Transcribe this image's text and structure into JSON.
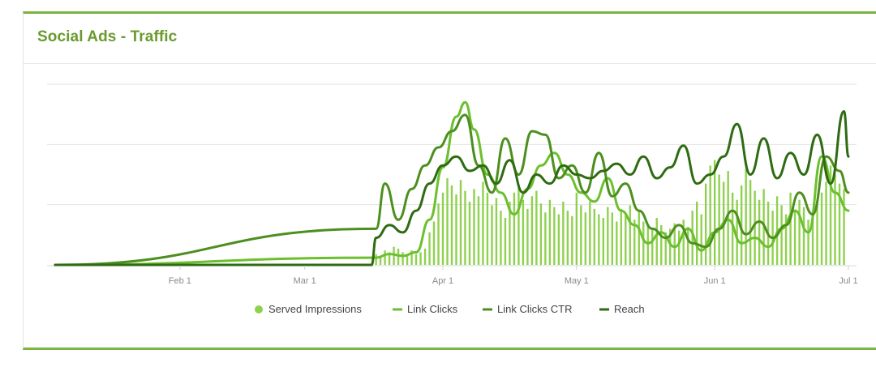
{
  "panel": {
    "title": "Social Ads - Traffic"
  },
  "colors": {
    "served_impressions": "#8fd14f",
    "link_clicks": "#6cbf2e",
    "link_clicks_ctr": "#4d8f1f",
    "reach": "#2f6b12",
    "gridline": "#e2e2e2",
    "title": "#6a9a2e"
  },
  "chart_data": {
    "type": "line",
    "grid": true,
    "legend_position": "bottom",
    "x_tick_labels": [
      "Feb 1",
      "Mar 1",
      "Apr 1",
      "May 1",
      "Jun 1",
      "Jul 1"
    ],
    "x_range": [
      "2021-01-04",
      "2021-07-01"
    ],
    "series": [
      {
        "name": "Served Impressions",
        "style": "bar",
        "color": "#8fd14f",
        "x": [
          "2021-03-17",
          "2021-03-18",
          "2021-03-19",
          "2021-03-20",
          "2021-03-21",
          "2021-03-22",
          "2021-03-23",
          "2021-03-24",
          "2021-03-25",
          "2021-03-26",
          "2021-03-27",
          "2021-03-28",
          "2021-03-29",
          "2021-03-30",
          "2021-03-31",
          "2021-04-01",
          "2021-04-02",
          "2021-04-03",
          "2021-04-04",
          "2021-04-05",
          "2021-04-06",
          "2021-04-07",
          "2021-04-08",
          "2021-04-09",
          "2021-04-10",
          "2021-04-11",
          "2021-04-12",
          "2021-04-13",
          "2021-04-14",
          "2021-04-15",
          "2021-04-16",
          "2021-04-17",
          "2021-04-18",
          "2021-04-19",
          "2021-04-20",
          "2021-04-21",
          "2021-04-22",
          "2021-04-23",
          "2021-04-24",
          "2021-04-25",
          "2021-04-26",
          "2021-04-27",
          "2021-04-28",
          "2021-04-29",
          "2021-04-30",
          "2021-05-01",
          "2021-05-02",
          "2021-05-03",
          "2021-05-04",
          "2021-05-05",
          "2021-05-06",
          "2021-05-07",
          "2021-05-08",
          "2021-05-09",
          "2021-05-10",
          "2021-05-11",
          "2021-05-12",
          "2021-05-13",
          "2021-05-14",
          "2021-05-15",
          "2021-05-16",
          "2021-05-17",
          "2021-05-18",
          "2021-05-19",
          "2021-05-20",
          "2021-05-21",
          "2021-05-22",
          "2021-05-23",
          "2021-05-24",
          "2021-05-25",
          "2021-05-26",
          "2021-05-27",
          "2021-05-28",
          "2021-05-29",
          "2021-05-30",
          "2021-05-31",
          "2021-06-01",
          "2021-06-02",
          "2021-06-03",
          "2021-06-04",
          "2021-06-05",
          "2021-06-06",
          "2021-06-07",
          "2021-06-08",
          "2021-06-09",
          "2021-06-10",
          "2021-06-11",
          "2021-06-12",
          "2021-06-13",
          "2021-06-14",
          "2021-06-15",
          "2021-06-16",
          "2021-06-17",
          "2021-06-18",
          "2021-06-19",
          "2021-06-20",
          "2021-06-21",
          "2021-06-22",
          "2021-06-23",
          "2021-06-24",
          "2021-06-25",
          "2021-06-26",
          "2021-06-27",
          "2021-06-28",
          "2021-06-29",
          "2021-06-30"
        ],
        "values": [
          0.06,
          0.05,
          0.08,
          0.07,
          0.1,
          0.09,
          0.07,
          0.05,
          0.08,
          0.06,
          0.07,
          0.09,
          0.18,
          0.24,
          0.34,
          0.4,
          0.48,
          0.44,
          0.39,
          0.47,
          0.41,
          0.35,
          0.42,
          0.38,
          0.46,
          0.4,
          0.33,
          0.37,
          0.3,
          0.26,
          0.35,
          0.4,
          0.43,
          0.36,
          0.31,
          0.38,
          0.41,
          0.34,
          0.29,
          0.36,
          0.32,
          0.28,
          0.35,
          0.3,
          0.27,
          0.4,
          0.33,
          0.29,
          0.35,
          0.31,
          0.28,
          0.26,
          0.32,
          0.29,
          0.24,
          0.31,
          0.28,
          0.33,
          0.25,
          0.3,
          0.24,
          0.22,
          0.2,
          0.26,
          0.22,
          0.18,
          0.2,
          0.23,
          0.19,
          0.25,
          0.21,
          0.3,
          0.35,
          0.28,
          0.45,
          0.55,
          0.58,
          0.5,
          0.46,
          0.52,
          0.4,
          0.36,
          0.44,
          0.53,
          0.47,
          0.41,
          0.36,
          0.42,
          0.35,
          0.3,
          0.38,
          0.33,
          0.28,
          0.4,
          0.3,
          0.36,
          0.32,
          0.25,
          0.3,
          0.35,
          0.4,
          0.46,
          0.55,
          0.5,
          0.45,
          0.42
        ]
      },
      {
        "name": "Link Clicks",
        "color": "#6cbf2e",
        "x": [
          "2021-01-04",
          "2021-03-17",
          "2021-03-20",
          "2021-03-23",
          "2021-03-26",
          "2021-03-29",
          "2021-04-01",
          "2021-04-04",
          "2021-04-06",
          "2021-04-08",
          "2021-04-11",
          "2021-04-14",
          "2021-04-17",
          "2021-04-20",
          "2021-04-23",
          "2021-04-26",
          "2021-04-29",
          "2021-05-02",
          "2021-05-05",
          "2021-05-08",
          "2021-05-11",
          "2021-05-14",
          "2021-05-17",
          "2021-05-20",
          "2021-05-23",
          "2021-05-26",
          "2021-05-29",
          "2021-06-01",
          "2021-06-04",
          "2021-06-07",
          "2021-06-10",
          "2021-06-13",
          "2021-06-16",
          "2021-06-19",
          "2021-06-22",
          "2021-06-25",
          "2021-06-28",
          "2021-07-01"
        ],
        "values": [
          0.0,
          0.04,
          0.06,
          0.05,
          0.07,
          0.25,
          0.54,
          0.82,
          0.9,
          0.75,
          0.5,
          0.4,
          0.28,
          0.42,
          0.55,
          0.62,
          0.5,
          0.4,
          0.35,
          0.48,
          0.3,
          0.22,
          0.12,
          0.18,
          0.1,
          0.2,
          0.08,
          0.18,
          0.25,
          0.12,
          0.15,
          0.1,
          0.2,
          0.3,
          0.18,
          0.6,
          0.4,
          0.3
        ]
      },
      {
        "name": "Link Clicks CTR",
        "color": "#4d8f1f",
        "x": [
          "2021-01-04",
          "2021-03-17",
          "2021-03-19",
          "2021-03-22",
          "2021-03-25",
          "2021-03-28",
          "2021-03-31",
          "2021-04-03",
          "2021-04-06",
          "2021-04-09",
          "2021-04-12",
          "2021-04-15",
          "2021-04-18",
          "2021-04-21",
          "2021-04-24",
          "2021-04-27",
          "2021-04-30",
          "2021-05-03",
          "2021-05-06",
          "2021-05-09",
          "2021-05-12",
          "2021-05-15",
          "2021-05-18",
          "2021-05-21",
          "2021-05-24",
          "2021-05-27",
          "2021-05-30",
          "2021-06-02",
          "2021-06-05",
          "2021-06-08",
          "2021-06-11",
          "2021-06-14",
          "2021-06-17",
          "2021-06-20",
          "2021-06-23",
          "2021-06-26",
          "2021-06-29",
          "2021-07-01"
        ],
        "values": [
          0.0,
          0.2,
          0.45,
          0.25,
          0.42,
          0.55,
          0.65,
          0.74,
          0.83,
          0.55,
          0.4,
          0.7,
          0.5,
          0.74,
          0.72,
          0.48,
          0.55,
          0.4,
          0.62,
          0.38,
          0.45,
          0.3,
          0.2,
          0.15,
          0.22,
          0.12,
          0.1,
          0.2,
          0.3,
          0.17,
          0.24,
          0.15,
          0.22,
          0.4,
          0.28,
          0.6,
          0.52,
          0.4
        ]
      },
      {
        "name": "Reach",
        "color": "#2f6b12",
        "x": [
          "2021-01-04",
          "2021-03-16",
          "2021-03-17",
          "2021-03-20",
          "2021-03-23",
          "2021-03-26",
          "2021-03-29",
          "2021-04-01",
          "2021-04-04",
          "2021-04-07",
          "2021-04-10",
          "2021-04-13",
          "2021-04-16",
          "2021-04-19",
          "2021-04-22",
          "2021-04-25",
          "2021-04-28",
          "2021-05-01",
          "2021-05-04",
          "2021-05-07",
          "2021-05-10",
          "2021-05-13",
          "2021-05-16",
          "2021-05-19",
          "2021-05-22",
          "2021-05-25",
          "2021-05-28",
          "2021-05-31",
          "2021-06-03",
          "2021-06-06",
          "2021-06-09",
          "2021-06-12",
          "2021-06-15",
          "2021-06-18",
          "2021-06-21",
          "2021-06-24",
          "2021-06-27",
          "2021-06-30",
          "2021-07-01"
        ],
        "values": [
          0.0,
          0.0,
          0.15,
          0.22,
          0.18,
          0.3,
          0.45,
          0.55,
          0.6,
          0.52,
          0.55,
          0.45,
          0.58,
          0.4,
          0.5,
          0.45,
          0.55,
          0.5,
          0.48,
          0.52,
          0.56,
          0.5,
          0.6,
          0.48,
          0.54,
          0.66,
          0.45,
          0.5,
          0.6,
          0.78,
          0.5,
          0.7,
          0.48,
          0.62,
          0.5,
          0.72,
          0.45,
          0.85,
          0.6
        ]
      }
    ]
  }
}
